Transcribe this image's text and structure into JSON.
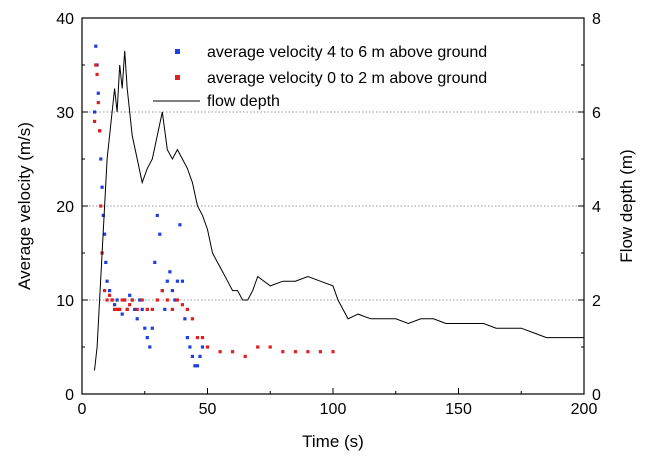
{
  "chart_data": {
    "type": "scatter",
    "xlabel": "Time (s)",
    "ylabel_left": "Average velocity (m/s)",
    "ylabel_right": "Flow depth (m)",
    "xlim": [
      0,
      200
    ],
    "ylim_left": [
      0,
      40
    ],
    "ylim_right": [
      0,
      8
    ],
    "x_ticks": [
      0,
      50,
      100,
      150,
      200
    ],
    "y_left_ticks": [
      0,
      10,
      20,
      30,
      40
    ],
    "y_right_ticks": [
      0,
      2,
      4,
      6,
      8
    ],
    "grid": "horizontal dotted lines at right-axis ticks",
    "legend_position": "top-right",
    "series": [
      {
        "name": "average velocity 4 to 6 m above ground",
        "axis": "left",
        "style": "markers",
        "color": "#1f3fe0",
        "x": [
          5,
          5.5,
          6,
          6.5,
          7,
          7.5,
          8,
          8.5,
          9,
          9.5,
          10,
          11,
          12,
          13,
          14,
          15,
          16,
          17,
          18,
          19,
          20,
          21,
          22,
          23,
          24,
          25,
          26,
          27,
          28,
          29,
          30,
          31,
          32,
          33,
          34,
          35,
          36,
          37,
          38,
          39,
          40,
          41,
          42,
          43,
          44,
          45,
          46,
          47,
          48
        ],
        "y": [
          30,
          37,
          35,
          32,
          28,
          25,
          22,
          19,
          17,
          14,
          12,
          11,
          10,
          9.5,
          10,
          9,
          8.5,
          10,
          9,
          10.5,
          10,
          9,
          8,
          10,
          9,
          7,
          6,
          5,
          7,
          14,
          19,
          17,
          11,
          9,
          12,
          13,
          11,
          10,
          12,
          18,
          12,
          8,
          6,
          5,
          4,
          3,
          3,
          4,
          5
        ]
      },
      {
        "name": "average velocity 0 to 2 m above ground",
        "axis": "left",
        "style": "markers",
        "color": "#e01f1f",
        "x": [
          5,
          5.5,
          6,
          6.5,
          7,
          7.5,
          8,
          9,
          10,
          11,
          12,
          13,
          14,
          15,
          16,
          17,
          18,
          19,
          20,
          22,
          24,
          26,
          28,
          30,
          32,
          34,
          36,
          38,
          40,
          42,
          44,
          46,
          48,
          50,
          55,
          60,
          65,
          70,
          75,
          80,
          85,
          90,
          95,
          100
        ],
        "y": [
          29,
          35,
          34,
          31,
          28,
          20,
          15,
          11,
          10,
          10.5,
          10,
          9,
          9,
          9,
          10,
          10,
          9,
          9.5,
          10,
          9,
          10,
          9,
          9,
          10,
          11,
          10,
          9,
          10,
          9.5,
          9,
          8,
          6,
          6,
          5,
          4.5,
          4.5,
          4,
          5,
          5,
          4.5,
          4.5,
          4.5,
          4.5,
          4.5
        ]
      },
      {
        "name": "flow depth",
        "axis": "right",
        "style": "line",
        "color": "#000000",
        "x": [
          5,
          6,
          7,
          8,
          9,
          10,
          11,
          12,
          13,
          14,
          15,
          16,
          17,
          18,
          19,
          20,
          22,
          24,
          26,
          28,
          30,
          32,
          34,
          36,
          38,
          40,
          42,
          44,
          46,
          48,
          50,
          52,
          54,
          56,
          58,
          60,
          62,
          64,
          66,
          68,
          70,
          75,
          80,
          85,
          90,
          95,
          100,
          102,
          104,
          106,
          110,
          115,
          120,
          125,
          130,
          135,
          140,
          145,
          150,
          155,
          160,
          165,
          170,
          175,
          180,
          185,
          190,
          195,
          200
        ],
        "y": [
          0.5,
          1,
          2,
          3,
          4,
          5,
          5.5,
          6,
          6.5,
          6,
          7,
          6.5,
          7.3,
          6.5,
          6,
          5.5,
          5,
          4.5,
          4.8,
          5,
          5.5,
          6,
          5.2,
          5,
          5.2,
          5,
          4.8,
          4.5,
          4,
          3.8,
          3.5,
          3,
          2.8,
          2.6,
          2.4,
          2.2,
          2.2,
          2,
          2,
          2.2,
          2.5,
          2.3,
          2.4,
          2.4,
          2.5,
          2.4,
          2.3,
          2,
          1.8,
          1.6,
          1.7,
          1.6,
          1.6,
          1.6,
          1.5,
          1.6,
          1.6,
          1.5,
          1.5,
          1.5,
          1.5,
          1.4,
          1.4,
          1.4,
          1.3,
          1.2,
          1.2,
          1.2,
          1.2
        ]
      }
    ]
  }
}
